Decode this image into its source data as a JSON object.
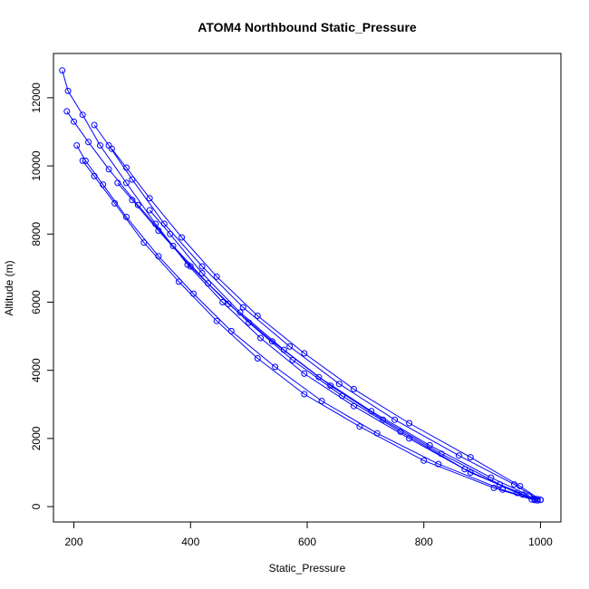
{
  "chart_data": {
    "type": "scatter",
    "title": "ATOM4 Northbound Static_Pressure",
    "xlabel": "Static_Pressure",
    "ylabel": "Altitude (m)",
    "xlim": [
      165,
      1035
    ],
    "ylim": [
      -450,
      13300
    ],
    "xticks": [
      200,
      400,
      600,
      800,
      1000
    ],
    "yticks": [
      0,
      2000,
      4000,
      6000,
      8000,
      10000,
      12000
    ],
    "grid": false,
    "legend": "none",
    "marker": "open-circle",
    "line": true,
    "color": "#0000ff",
    "series": [
      {
        "x": [
          180,
          190,
          215,
          245,
          290,
          340,
          395,
          455,
          520,
          595,
          680,
          775,
          880,
          970,
          1000
        ],
        "y": [
          12800,
          12200,
          11500,
          10600,
          9500,
          8300,
          7100,
          6000,
          4950,
          3900,
          2950,
          2000,
          1000,
          350,
          200
        ]
      },
      {
        "x": [
          188,
          200,
          225,
          260,
          310,
          370,
          430,
          500,
          575,
          660,
          760,
          870,
          960,
          995
        ],
        "y": [
          11600,
          11300,
          10700,
          9900,
          8850,
          7650,
          6550,
          5400,
          4300,
          3250,
          2200,
          1100,
          400,
          180
        ]
      },
      {
        "x": [
          205,
          220,
          250,
          290,
          345,
          405,
          470,
          545,
          625,
          720,
          825,
          935,
          990
        ],
        "y": [
          10600,
          10150,
          9450,
          8500,
          7350,
          6250,
          5150,
          4100,
          3100,
          2150,
          1250,
          500,
          190
        ]
      },
      {
        "x": [
          215,
          235,
          270,
          320,
          380,
          445,
          515,
          595,
          690,
          800,
          920,
          985
        ],
        "y": [
          10150,
          9700,
          8900,
          7750,
          6600,
          5450,
          4350,
          3300,
          2350,
          1350,
          550,
          210
        ]
      },
      {
        "x": [
          235,
          260,
          300,
          355,
          420,
          490,
          570,
          655,
          750,
          860,
          955,
          995
        ],
        "y": [
          11200,
          10600,
          9600,
          8300,
          7050,
          5850,
          4700,
          3600,
          2550,
          1500,
          650,
          220
        ]
      },
      {
        "x": [
          265,
          290,
          330,
          385,
          445,
          515,
          595,
          680,
          775,
          880,
          965,
          1000
        ],
        "y": [
          10500,
          9950,
          9050,
          7900,
          6750,
          5600,
          4500,
          3450,
          2450,
          1450,
          600,
          200
        ]
      },
      {
        "x": [
          275,
          300,
          345,
          400,
          465,
          540,
          620,
          710,
          810,
          915,
          980
        ],
        "y": [
          9500,
          9000,
          8100,
          7050,
          5950,
          4850,
          3800,
          2800,
          1800,
          850,
          330
        ]
      },
      {
        "x": [
          330,
          365,
          420,
          485,
          560,
          640,
          730,
          830,
          930,
          990
        ],
        "y": [
          8700,
          8000,
          6850,
          5700,
          4600,
          3550,
          2550,
          1550,
          650,
          220
        ]
      }
    ]
  }
}
